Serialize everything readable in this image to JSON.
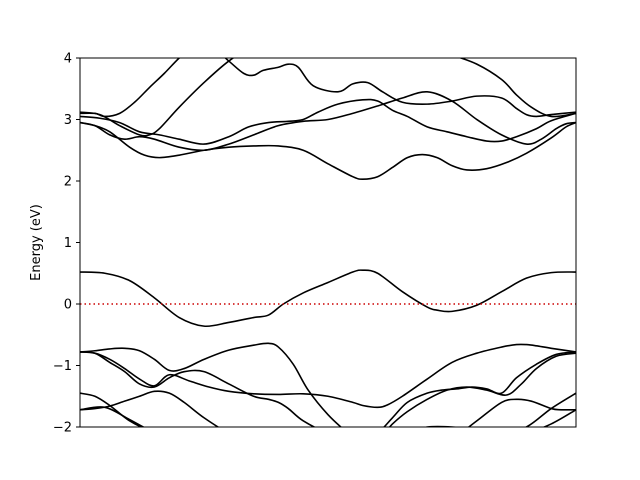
{
  "chart_data": {
    "type": "line",
    "title": "",
    "xlabel": "",
    "ylabel": "Energy (eV)",
    "xlim": [
      0,
      100
    ],
    "ylim": [
      -2,
      4
    ],
    "yticks": [
      -2,
      -1,
      0,
      1,
      2,
      3,
      4
    ],
    "ytick_labels": [
      "−2",
      "−1",
      "0",
      "1",
      "2",
      "3",
      "4"
    ],
    "xticks": [],
    "grid": false,
    "legend": "none",
    "colors": {
      "bands": "#000000",
      "fermi": "#cc0000"
    },
    "fermi_level": {
      "y": 0,
      "style": "dotted"
    },
    "series": [
      {
        "x": [
          0,
          5,
          10,
          15,
          20,
          25,
          30,
          35,
          40,
          45,
          50,
          55,
          60,
          65,
          70,
          75,
          80,
          85,
          90,
          95,
          100
        ],
        "values": [
          -1.72,
          -1.68,
          -1.88,
          -2.1,
          -2.3,
          -2.45,
          -2.55,
          -2.55,
          -2.4,
          -2.3,
          -2.2,
          -2.1,
          -2.1,
          -2.2,
          -2.3,
          -2.3,
          -2.2,
          -2.15,
          -2.1,
          -1.95,
          -1.72
        ]
      },
      {
        "x": [
          0,
          3,
          6,
          10,
          14,
          18,
          22,
          26,
          30,
          35,
          40,
          45,
          50,
          55,
          60,
          65,
          70,
          75,
          80,
          85,
          90,
          95,
          100
        ],
        "values": [
          -1.45,
          -1.5,
          -1.65,
          -1.9,
          -2.05,
          -2.1,
          -2.1,
          -2.1,
          -2.1,
          -2.15,
          -2.2,
          -2.2,
          -2.2,
          -2.2,
          -2.2,
          -2.1,
          -2.0,
          -2.0,
          -2.05,
          -2.1,
          -2.0,
          -1.7,
          -1.45
        ]
      },
      {
        "x": [
          0,
          3,
          6,
          9,
          12,
          15,
          18,
          21,
          25,
          30,
          35,
          40,
          45,
          50,
          55,
          60,
          63,
          66,
          70,
          74,
          78,
          82,
          86,
          89,
          92,
          96,
          100
        ],
        "values": [
          -1.72,
          -1.7,
          -1.66,
          -1.58,
          -1.5,
          -1.42,
          -1.45,
          -1.6,
          -1.85,
          -2.1,
          -2.25,
          -2.3,
          -2.3,
          -2.3,
          -2.3,
          -2.2,
          -1.95,
          -1.75,
          -1.55,
          -1.4,
          -1.35,
          -1.4,
          -1.48,
          -1.3,
          -1.05,
          -0.85,
          -0.8
        ]
      },
      {
        "x": [
          0,
          3,
          6,
          9,
          12,
          15,
          18,
          21,
          25,
          30,
          35,
          38,
          40,
          43,
          46,
          50,
          54,
          57,
          60,
          65,
          70,
          75,
          80,
          85,
          88,
          91,
          95,
          97,
          100
        ],
        "values": [
          -0.78,
          -0.76,
          -0.73,
          -0.72,
          -0.76,
          -0.9,
          -1.08,
          -1.05,
          -0.9,
          -0.75,
          -0.67,
          -0.64,
          -0.7,
          -0.98,
          -1.4,
          -1.8,
          -2.1,
          -2.3,
          -2.4,
          -2.45,
          -2.4,
          -2.2,
          -1.9,
          -1.6,
          -1.55,
          -1.58,
          -1.7,
          -1.72,
          -1.72
        ]
      },
      {
        "x": [
          0,
          3,
          6,
          9,
          12,
          15,
          18,
          22,
          26,
          30,
          35,
          40,
          45,
          50,
          55,
          57,
          60,
          62,
          65,
          70,
          75,
          80,
          85,
          88,
          90,
          92,
          95,
          100
        ],
        "values": [
          -0.78,
          -0.8,
          -0.9,
          -1.05,
          -1.22,
          -1.33,
          -1.15,
          -1.25,
          -1.35,
          -1.42,
          -1.46,
          -1.47,
          -1.46,
          -1.5,
          -1.6,
          -1.65,
          -1.68,
          -1.64,
          -1.5,
          -1.22,
          -0.95,
          -0.8,
          -0.7,
          -0.66,
          -0.66,
          -0.68,
          -0.72,
          -0.78
        ]
      },
      {
        "x": [
          0,
          3,
          6,
          9,
          12,
          15,
          18,
          21,
          25,
          30,
          35,
          38,
          40,
          42,
          45,
          50,
          55,
          57,
          60,
          63,
          66,
          70,
          73,
          76,
          79,
          82,
          85,
          88,
          92,
          96,
          100
        ],
        "values": [
          -0.78,
          -0.8,
          -0.95,
          -1.1,
          -1.3,
          -1.35,
          -1.2,
          -1.1,
          -1.1,
          -1.3,
          -1.5,
          -1.55,
          -1.6,
          -1.7,
          -1.9,
          -2.1,
          -2.2,
          -2.2,
          -2.1,
          -1.85,
          -1.6,
          -1.45,
          -1.4,
          -1.38,
          -1.35,
          -1.38,
          -1.45,
          -1.2,
          -0.98,
          -0.82,
          -0.78
        ]
      },
      {
        "x": [
          0,
          5,
          10,
          15,
          20,
          25,
          30,
          35,
          38,
          41,
          45,
          50,
          55,
          57,
          60,
          65,
          70,
          72,
          75,
          80,
          85,
          90,
          95,
          100
        ],
        "values": [
          0.52,
          0.5,
          0.38,
          0.1,
          -0.22,
          -0.36,
          -0.3,
          -0.22,
          -0.18,
          0.0,
          0.18,
          0.35,
          0.52,
          0.55,
          0.5,
          0.2,
          -0.05,
          -0.1,
          -0.12,
          -0.02,
          0.2,
          0.42,
          0.51,
          0.52
        ]
      },
      {
        "x": [
          0,
          3,
          6,
          10,
          13,
          16,
          20,
          25,
          30,
          35,
          40,
          45,
          50,
          55,
          57,
          60,
          63,
          66,
          69,
          72,
          75,
          78,
          82,
          86,
          90,
          95,
          98,
          100
        ],
        "values": [
          2.95,
          2.9,
          2.8,
          2.55,
          2.42,
          2.38,
          2.42,
          2.5,
          2.55,
          2.57,
          2.57,
          2.5,
          2.28,
          2.07,
          2.03,
          2.07,
          2.22,
          2.38,
          2.43,
          2.38,
          2.25,
          2.18,
          2.2,
          2.3,
          2.45,
          2.7,
          2.88,
          2.95
        ]
      },
      {
        "x": [
          0,
          3,
          6,
          9,
          12,
          15,
          20,
          25,
          30,
          35,
          40,
          45,
          50,
          55,
          60,
          65,
          70,
          75,
          80,
          85,
          90,
          93,
          96,
          98,
          100
        ],
        "values": [
          2.95,
          2.9,
          2.75,
          2.68,
          2.72,
          2.68,
          2.55,
          2.5,
          2.6,
          2.75,
          2.9,
          2.97,
          3.0,
          3.1,
          3.22,
          3.35,
          3.45,
          3.3,
          3.0,
          2.75,
          2.6,
          2.68,
          2.85,
          2.93,
          2.95
        ]
      },
      {
        "x": [
          0,
          4,
          8,
          12,
          16,
          20,
          25,
          30,
          34,
          38,
          42,
          45,
          48,
          52,
          57,
          60,
          63,
          66,
          70,
          74,
          78,
          82,
          85,
          88,
          92,
          95,
          100
        ],
        "values": [
          3.05,
          3.02,
          2.95,
          2.8,
          2.75,
          2.68,
          2.6,
          2.72,
          2.88,
          2.95,
          2.97,
          3.0,
          3.12,
          3.25,
          3.32,
          3.3,
          3.15,
          3.05,
          2.88,
          2.8,
          2.72,
          2.65,
          2.65,
          2.72,
          2.85,
          2.98,
          3.1
        ]
      },
      {
        "x": [
          0,
          3,
          5,
          8,
          11,
          14,
          17,
          20,
          23,
          27,
          30,
          33,
          35,
          37,
          40,
          42,
          44,
          47,
          52,
          55,
          58,
          61,
          65,
          70,
          75,
          80,
          85,
          88,
          90,
          92,
          95,
          100
        ],
        "values": [
          3.1,
          3.1,
          3.05,
          3.1,
          3.28,
          3.52,
          3.75,
          4.0,
          4.2,
          4.15,
          3.95,
          3.75,
          3.72,
          3.8,
          3.85,
          3.9,
          3.85,
          3.55,
          3.45,
          3.58,
          3.6,
          3.45,
          3.28,
          3.25,
          3.3,
          3.38,
          3.35,
          3.18,
          3.08,
          3.05,
          3.08,
          3.12
        ]
      },
      {
        "x": [
          0,
          4,
          8,
          12,
          14,
          16,
          20,
          25,
          30,
          35,
          40,
          45,
          50,
          55,
          60,
          65,
          70,
          75,
          80,
          85,
          88,
          91,
          95,
          100
        ],
        "values": [
          3.12,
          3.08,
          2.9,
          2.75,
          2.75,
          2.85,
          3.2,
          3.6,
          3.95,
          4.2,
          4.35,
          4.45,
          4.5,
          4.5,
          4.45,
          4.35,
          4.2,
          4.05,
          3.9,
          3.65,
          3.4,
          3.2,
          3.05,
          3.1
        ]
      }
    ]
  }
}
